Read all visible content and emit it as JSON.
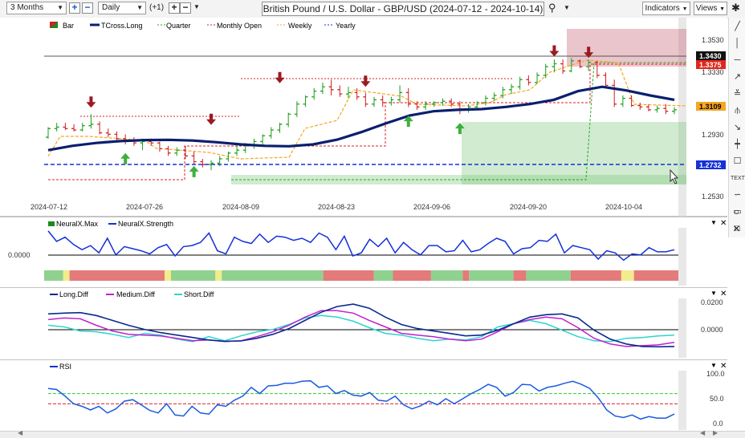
{
  "toolbar": {
    "range": "3 Months",
    "interval": "Daily",
    "offset": "(+1)",
    "title": "British Pound / U.S. Dollar - GBP/USD (2024-07-12 - 2024-10-14)",
    "indicators": "Indicators",
    "views": "Views"
  },
  "right_tools": [
    "line-tool-icon",
    "vertical-line-icon",
    "horizontal-line-icon",
    "ray-icon",
    "fib-icon",
    "pitchfork-icon",
    "arrow-tool-icon",
    "cross-line-icon",
    "callout-icon",
    "text-tool-icon",
    "wave-icon",
    "text-box-icon",
    "rectangle-icon",
    "circle-icon",
    "close-icon"
  ],
  "text_tool_label": "TEXT",
  "chart_data": [
    {
      "type": "candlestick",
      "panel": "price",
      "legend": [
        "Bar",
        "TCross.Long",
        "Quarter",
        "Monthly Open",
        "Weekly",
        "Yearly"
      ],
      "x_tick_labels": [
        "2024-07-12",
        "2024-07-26",
        "2024-08-09",
        "2024-08-23",
        "2024-09-06",
        "2024-09-20",
        "2024-10-04"
      ],
      "y_tick_labels": [
        "1.3530",
        "1.3330",
        "1.2930",
        "1.2530"
      ],
      "ylim": [
        1.245,
        1.362
      ],
      "price_labels": [
        {
          "text": "1.3430",
          "value": 1.343,
          "color": "#111111"
        },
        {
          "text": "1.3375",
          "value": 1.3375,
          "color": "#e0261c"
        },
        {
          "text": "1.3109",
          "value": 1.3109,
          "color": "#f5a623"
        },
        {
          "text": "1.2732",
          "value": 1.2732,
          "color": "#1530d8"
        }
      ],
      "ohlc": [
        [
          1.289,
          1.296,
          1.288,
          1.295
        ],
        [
          1.295,
          1.299,
          1.293,
          1.296
        ],
        [
          1.296,
          1.299,
          1.294,
          1.295
        ],
        [
          1.295,
          1.298,
          1.293,
          1.294
        ],
        [
          1.294,
          1.299,
          1.293,
          1.297
        ],
        [
          1.297,
          1.305,
          1.295,
          1.298
        ],
        [
          1.298,
          1.3,
          1.291,
          1.292
        ],
        [
          1.292,
          1.295,
          1.289,
          1.291
        ],
        [
          1.291,
          1.293,
          1.286,
          1.288
        ],
        [
          1.288,
          1.291,
          1.284,
          1.287
        ],
        [
          1.287,
          1.289,
          1.283,
          1.285
        ],
        [
          1.285,
          1.288,
          1.28,
          1.286
        ],
        [
          1.286,
          1.288,
          1.283,
          1.285
        ],
        [
          1.285,
          1.286,
          1.279,
          1.281
        ],
        [
          1.281,
          1.283,
          1.276,
          1.278
        ],
        [
          1.278,
          1.282,
          1.276,
          1.28
        ],
        [
          1.28,
          1.283,
          1.274,
          1.276
        ],
        [
          1.276,
          1.279,
          1.27,
          1.272
        ],
        [
          1.272,
          1.274,
          1.268,
          1.27
        ],
        [
          1.27,
          1.273,
          1.266,
          1.271
        ],
        [
          1.271,
          1.276,
          1.269,
          1.274
        ],
        [
          1.274,
          1.279,
          1.272,
          1.278
        ],
        [
          1.278,
          1.283,
          1.276,
          1.28
        ],
        [
          1.28,
          1.285,
          1.278,
          1.283
        ],
        [
          1.283,
          1.288,
          1.281,
          1.286
        ],
        [
          1.286,
          1.291,
          1.284,
          1.29
        ],
        [
          1.29,
          1.296,
          1.288,
          1.294
        ],
        [
          1.294,
          1.299,
          1.292,
          1.298
        ],
        [
          1.298,
          1.306,
          1.296,
          1.305
        ],
        [
          1.305,
          1.314,
          1.303,
          1.312
        ],
        [
          1.312,
          1.318,
          1.31,
          1.317
        ],
        [
          1.317,
          1.323,
          1.315,
          1.321
        ],
        [
          1.321,
          1.327,
          1.319,
          1.324
        ],
        [
          1.324,
          1.329,
          1.318,
          1.322
        ],
        [
          1.322,
          1.325,
          1.317,
          1.319
        ],
        [
          1.319,
          1.324,
          1.316,
          1.32
        ],
        [
          1.32,
          1.323,
          1.315,
          1.317
        ],
        [
          1.317,
          1.32,
          1.31,
          1.312
        ],
        [
          1.312,
          1.317,
          1.31,
          1.315
        ],
        [
          1.315,
          1.318,
          1.31,
          1.313
        ],
        [
          1.313,
          1.317,
          1.311,
          1.315
        ],
        [
          1.315,
          1.325,
          1.313,
          1.32
        ],
        [
          1.32,
          1.323,
          1.31,
          1.312
        ],
        [
          1.312,
          1.314,
          1.308,
          1.31
        ],
        [
          1.31,
          1.314,
          1.308,
          1.312
        ],
        [
          1.312,
          1.314,
          1.31,
          1.313
        ],
        [
          1.313,
          1.316,
          1.311,
          1.314
        ],
        [
          1.314,
          1.316,
          1.31,
          1.312
        ],
        [
          1.312,
          1.314,
          1.305,
          1.308
        ],
        [
          1.308,
          1.312,
          1.306,
          1.31
        ],
        [
          1.31,
          1.314,
          1.309,
          1.313
        ],
        [
          1.313,
          1.318,
          1.311,
          1.316
        ],
        [
          1.316,
          1.32,
          1.314,
          1.318
        ],
        [
          1.318,
          1.324,
          1.316,
          1.322
        ],
        [
          1.322,
          1.326,
          1.319,
          1.324
        ],
        [
          1.324,
          1.331,
          1.322,
          1.329
        ],
        [
          1.329,
          1.332,
          1.325,
          1.327
        ],
        [
          1.327,
          1.334,
          1.326,
          1.332
        ],
        [
          1.332,
          1.34,
          1.33,
          1.338
        ],
        [
          1.338,
          1.343,
          1.334,
          1.34
        ],
        [
          1.34,
          1.343,
          1.333,
          1.335
        ],
        [
          1.335,
          1.344,
          1.334,
          1.342
        ],
        [
          1.342,
          1.343,
          1.337,
          1.338
        ],
        [
          1.338,
          1.343,
          1.335,
          1.341
        ],
        [
          1.341,
          1.342,
          1.33,
          1.332
        ],
        [
          1.332,
          1.334,
          1.323,
          1.325
        ],
        [
          1.325,
          1.329,
          1.31,
          1.312
        ],
        [
          1.312,
          1.318,
          1.31,
          1.316
        ],
        [
          1.316,
          1.318,
          1.31,
          1.311
        ],
        [
          1.311,
          1.313,
          1.308,
          1.31
        ],
        [
          1.31,
          1.312,
          1.307,
          1.308
        ],
        [
          1.308,
          1.311,
          1.306,
          1.309
        ],
        [
          1.309,
          1.312,
          1.305,
          1.307
        ],
        [
          1.307,
          1.31,
          1.305,
          1.308
        ]
      ],
      "tcross_long": [
        1.28,
        1.283,
        1.285,
        1.2863,
        1.287,
        1.2872,
        1.2867,
        1.2855,
        1.284,
        1.283,
        1.2827,
        1.284,
        1.2873,
        1.2925,
        1.2985,
        1.304,
        1.307,
        1.308,
        1.3085,
        1.31,
        1.312,
        1.315,
        1.321,
        1.324,
        1.3215,
        1.318,
        1.315
      ],
      "arrows_down": [
        {
          "i": 5,
          "v": 1.3095
        },
        {
          "i": 19,
          "v": 1.2975
        },
        {
          "i": 27,
          "v": 1.3265
        },
        {
          "i": 37,
          "v": 1.324
        },
        {
          "i": 59,
          "v": 1.345
        },
        {
          "i": 63,
          "v": 1.344
        }
      ],
      "arrows_up": [
        {
          "i": 9,
          "v": 1.278
        },
        {
          "i": 17,
          "v": 1.269
        },
        {
          "i": 42,
          "v": 1.304
        },
        {
          "i": 48,
          "v": 1.299
        }
      ]
    },
    {
      "type": "line",
      "panel": "neuralx",
      "legend": [
        "NeuralX.Max",
        "NeuralX.Strength"
      ],
      "y_tick_labels": [
        "0.0000"
      ],
      "ylim": [
        -1.0,
        1.0
      ],
      "series": [
        {
          "name": "NeuralX.Strength",
          "values": [
            0.85,
            0.35,
            0.55,
            0.2,
            -0.05,
            0.15,
            -0.2,
            0.5,
            -0.3,
            0.1,
            0.0,
            -0.1,
            -0.25,
            0.05,
            0.2,
            -0.35,
            0.1,
            0.15,
            0.3,
            0.75,
            -0.1,
            -0.25,
            0.55,
            0.35,
            0.25,
            0.7,
            0.3,
            0.6,
            0.55,
            0.4,
            0.5,
            0.3,
            0.75,
            0.55,
            -0.05,
            0.6,
            -0.35,
            -0.2,
            0.45,
            0.1,
            0.5,
            -0.2,
            0.3,
            -0.05,
            -0.3,
            0.15,
            0.15,
            -0.15,
            -0.1,
            0.4,
            -0.15,
            -0.05,
            0.25,
            0.5,
            0.35,
            -0.25,
            0.0,
            0.05,
            0.4,
            0.35,
            0.7,
            -0.2,
            0.15,
            0.05,
            -0.05,
            -0.5,
            -0.1,
            -0.2,
            -0.55,
            -0.25,
            -0.3,
            0.05,
            -0.15,
            -0.15,
            -0.05
          ]
        }
      ],
      "color_bar": [
        {
          "from": 0,
          "to": 3,
          "state": "green"
        },
        {
          "from": 3,
          "to": 4,
          "state": "yellow"
        },
        {
          "from": 4,
          "to": 19,
          "state": "red"
        },
        {
          "from": 19,
          "to": 20,
          "state": "yellow"
        },
        {
          "from": 20,
          "to": 27,
          "state": "green"
        },
        {
          "from": 27,
          "to": 28,
          "state": "yellow"
        },
        {
          "from": 28,
          "to": 44,
          "state": "green"
        },
        {
          "from": 44,
          "to": 52,
          "state": "red"
        },
        {
          "from": 52,
          "to": 55,
          "state": "green"
        },
        {
          "from": 55,
          "to": 61,
          "state": "red"
        },
        {
          "from": 61,
          "to": 66,
          "state": "green"
        },
        {
          "from": 66,
          "to": 67,
          "state": "red"
        },
        {
          "from": 67,
          "to": 74,
          "state": "green"
        },
        {
          "from": 74,
          "to": 76,
          "state": "red"
        },
        {
          "from": 76,
          "to": 83,
          "state": "green"
        },
        {
          "from": 83,
          "to": 91,
          "state": "red"
        },
        {
          "from": 91,
          "to": 93,
          "state": "yellow"
        },
        {
          "from": 93,
          "to": 100,
          "state": "red"
        }
      ]
    },
    {
      "type": "line",
      "panel": "diff",
      "legend": [
        "Long.Diff",
        "Medium.Diff",
        "Short.Diff"
      ],
      "y_tick_labels": [
        "0.0200",
        "0.0000"
      ],
      "ylim": [
        -0.012,
        0.0215
      ],
      "series": [
        {
          "name": "Long.Diff",
          "color": "#0a2a8c",
          "values": [
            0.012,
            0.0125,
            0.0128,
            0.011,
            0.008,
            0.005,
            0.0025,
            0.0005,
            -0.001,
            -0.0025,
            -0.004,
            -0.0048,
            -0.0046,
            -0.003,
            -0.0005,
            0.003,
            0.008,
            0.013,
            0.0165,
            0.018,
            0.0155,
            0.01,
            0.0055,
            0.003,
            0.0015,
            0.0,
            -0.0015,
            -0.001,
            0.002,
            0.006,
            0.01,
            0.0115,
            0.012,
            0.0095,
            0.002,
            -0.0035,
            -0.0065,
            -0.008,
            -0.0082,
            -0.008
          ]
        },
        {
          "name": "Medium.Diff",
          "color": "#c020d0",
          "values": [
            0.0085,
            0.0095,
            0.009,
            0.005,
            0.0015,
            -0.0005,
            -0.001,
            -0.0015,
            -0.003,
            -0.0045,
            -0.004,
            -0.005,
            -0.0045,
            -0.002,
            0.001,
            0.005,
            0.01,
            0.014,
            0.014,
            0.0125,
            0.008,
            0.004,
            0.0,
            -0.001,
            -0.002,
            -0.0035,
            -0.0045,
            -0.0035,
            0.001,
            0.006,
            0.0085,
            0.01,
            0.009,
            0.0035,
            -0.003,
            -0.0065,
            -0.008,
            -0.0075,
            -0.007,
            -0.0055
          ]
        },
        {
          "name": "Short.Diff",
          "color": "#2bd6d0",
          "values": [
            0.005,
            0.004,
            0.0015,
            0.001,
            -0.0005,
            -0.0025,
            0.0,
            -0.001,
            -0.0035,
            -0.005,
            -0.002,
            -0.0045,
            -0.0015,
            0.001,
            0.0025,
            0.0055,
            0.0095,
            0.011,
            0.01,
            0.0075,
            0.0035,
            0.0,
            -0.001,
            -0.003,
            -0.0045,
            -0.0035,
            -0.004,
            -0.002,
            0.004,
            0.006,
            0.008,
            0.006,
            0.002,
            -0.002,
            -0.0045,
            -0.005,
            -0.003,
            -0.0025,
            -0.0015,
            -0.001
          ]
        }
      ]
    },
    {
      "type": "line",
      "panel": "rsi",
      "legend": [
        "RSI"
      ],
      "y_tick_labels": [
        "100.0",
        "50.0",
        "0.0"
      ],
      "ylim": [
        -5,
        108
      ],
      "reference_lines": [
        {
          "value": 60,
          "color": "#33cc33"
        },
        {
          "value": 40,
          "color": "#dd2222"
        }
      ],
      "series": [
        {
          "name": "RSI",
          "values": [
            70,
            68,
            55,
            40,
            35,
            28,
            35,
            22,
            30,
            45,
            48,
            38,
            27,
            22,
            40,
            18,
            16,
            35,
            22,
            20,
            38,
            35,
            47,
            55,
            72,
            60,
            75,
            76,
            80,
            80,
            84,
            85,
            72,
            75,
            60,
            66,
            57,
            55,
            62,
            47,
            45,
            55,
            38,
            30,
            36,
            45,
            38,
            50,
            40,
            50,
            60,
            68,
            78,
            72,
            55,
            62,
            78,
            77,
            65,
            72,
            75,
            80,
            84,
            78,
            70,
            52,
            28,
            16,
            13,
            18,
            10,
            15,
            12,
            12,
            20
          ]
        }
      ]
    }
  ]
}
